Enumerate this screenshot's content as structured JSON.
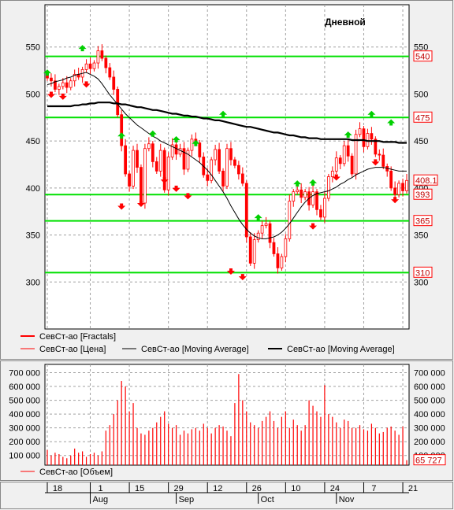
{
  "chart_data": [
    {
      "type": "candlestick",
      "title": "Дневной",
      "ylim": [
        250,
        595
      ],
      "y_ticks": [
        300,
        350,
        400,
        450,
        500,
        550
      ],
      "grid": true,
      "hlines": [
        540,
        475,
        393,
        365,
        310
      ],
      "last_price": 408.1,
      "legend": [
        {
          "name": "СевСт-ао [Fractals]",
          "color": "#ff0000"
        },
        {
          "name": "СевСт-ао [Цена]",
          "color": "#ff0000"
        },
        {
          "name": "СевСт-ао [Moving Average]",
          "color": "#000000"
        },
        {
          "name": "СевСт-ао [Moving Average]",
          "color": "#000000"
        }
      ],
      "close": [
        517,
        514,
        505,
        508,
        512,
        507,
        514,
        521,
        518,
        526,
        532,
        527,
        533,
        546,
        538,
        528,
        518,
        505,
        478,
        445,
        415,
        402,
        440,
        422,
        384,
        442,
        447,
        428,
        418,
        440,
        398,
        433,
        446,
        436,
        442,
        420,
        440,
        452,
        448,
        433,
        414,
        408,
        430,
        441,
        418,
        402,
        442,
        430,
        424,
        415,
        405,
        348,
        320,
        345,
        352,
        360,
        362,
        342,
        330,
        315,
        327,
        346,
        386,
        396,
        398,
        390,
        396,
        382,
        396,
        377,
        369,
        389,
        412,
        418,
        432,
        426,
        445,
        434,
        415,
        457,
        463,
        444,
        458,
        452,
        436,
        435,
        423,
        418,
        400,
        393,
        405,
        397,
        408
      ],
      "ma_short": [
        510,
        511,
        513,
        514,
        515,
        517,
        518,
        520,
        521,
        522,
        523,
        521,
        519,
        516,
        511,
        505,
        499,
        494,
        489,
        484,
        479,
        475,
        471,
        467,
        464,
        461,
        458,
        455,
        453,
        450,
        448,
        446,
        444,
        442,
        440,
        438,
        436,
        433,
        430,
        427,
        423,
        419,
        414,
        408,
        402,
        396,
        389,
        381,
        374,
        367,
        361,
        356,
        352,
        349,
        347,
        346,
        346,
        347,
        348,
        350,
        353,
        357,
        362,
        368,
        374,
        380,
        385,
        389,
        392,
        394,
        395,
        396,
        397,
        399,
        401,
        404,
        406,
        409,
        411,
        414,
        416,
        418,
        420,
        421,
        422,
        422,
        422,
        421,
        420,
        419,
        418,
        418,
        418
      ],
      "ma_long": [
        487,
        487,
        487,
        487,
        487,
        487,
        487,
        488,
        488,
        489,
        489,
        490,
        490,
        491,
        491,
        491,
        491,
        490,
        490,
        489,
        489,
        488,
        487,
        486,
        486,
        485,
        484,
        483,
        483,
        482,
        481,
        480,
        479,
        479,
        478,
        477,
        477,
        476,
        476,
        475,
        474,
        474,
        473,
        472,
        472,
        471,
        470,
        469,
        468,
        467,
        466,
        465,
        465,
        464,
        463,
        462,
        461,
        460,
        459,
        459,
        458,
        457,
        456,
        456,
        455,
        454,
        454,
        453,
        453,
        453,
        452,
        452,
        452,
        452,
        452,
        452,
        452,
        452,
        451,
        451,
        451,
        451,
        450,
        450,
        450,
        450,
        449,
        449,
        449,
        449,
        448,
        448,
        448
      ],
      "fractals_up": [
        [
          0,
          522
        ],
        [
          9,
          548
        ],
        [
          19,
          455
        ],
        [
          27,
          457
        ],
        [
          33,
          451
        ],
        [
          38,
          447
        ],
        [
          45,
          478
        ],
        [
          54,
          368
        ],
        [
          64,
          404
        ],
        [
          68,
          405
        ],
        [
          77,
          456
        ],
        [
          83,
          478
        ],
        [
          88,
          469
        ]
      ],
      "fractals_down": [
        [
          1,
          500
        ],
        [
          4,
          498
        ],
        [
          10,
          511
        ],
        [
          19,
          381
        ],
        [
          24,
          384
        ],
        [
          30,
          409
        ],
        [
          33,
          400
        ],
        [
          36,
          392
        ],
        [
          47,
          312
        ],
        [
          50,
          306
        ],
        [
          68,
          360
        ],
        [
          74,
          412
        ],
        [
          84,
          428
        ],
        [
          89,
          388
        ]
      ]
    },
    {
      "type": "bar",
      "ylim": [
        30000,
        760000
      ],
      "y_ticks": [
        "100 000",
        "200 000",
        "300 000",
        "400 000",
        "500 000",
        "600 000",
        "700 000"
      ],
      "y_tick_values": [
        100000,
        200000,
        300000,
        400000,
        500000,
        600000,
        700000
      ],
      "last_volume": "65 727",
      "legend": [
        {
          "name": "СевСт-ао [Объем]",
          "color": "#ff0000"
        }
      ],
      "values": [
        140000,
        100000,
        120000,
        110000,
        90000,
        80000,
        100000,
        150000,
        120000,
        130000,
        90000,
        110000,
        120000,
        100000,
        130000,
        280000,
        320000,
        400000,
        500000,
        640000,
        600000,
        420000,
        480000,
        300000,
        260000,
        250000,
        280000,
        300000,
        340000,
        380000,
        420000,
        330000,
        300000,
        320000,
        250000,
        280000,
        260000,
        290000,
        300000,
        280000,
        330000,
        300000,
        260000,
        300000,
        320000,
        310000,
        280000,
        240000,
        480000,
        690000,
        500000,
        420000,
        340000,
        320000,
        300000,
        350000,
        380000,
        420000,
        350000,
        300000,
        380000,
        420000,
        300000,
        360000,
        320000,
        280000,
        320000,
        500000,
        460000,
        420000,
        380000,
        610000,
        400000,
        380000,
        340000,
        300000,
        360000,
        350000,
        300000,
        300000,
        320000,
        290000,
        280000,
        330000,
        300000,
        260000,
        270000,
        300000,
        310000,
        280000,
        250000,
        310000,
        66000
      ]
    }
  ],
  "x_axis": {
    "days": [
      {
        "i": 0,
        "label": "18"
      },
      {
        "i": 11,
        "label": "1"
      },
      {
        "i": 21,
        "label": "15"
      },
      {
        "i": 31,
        "label": "29"
      },
      {
        "i": 41,
        "label": "12"
      },
      {
        "i": 51,
        "label": "26"
      },
      {
        "i": 61,
        "label": "10"
      },
      {
        "i": 71,
        "label": "24"
      },
      {
        "i": 81,
        "label": "7"
      },
      {
        "i": 91,
        "label": "21"
      }
    ],
    "months": [
      {
        "i": 11,
        "label": "Aug"
      },
      {
        "i": 33,
        "label": "Sep"
      },
      {
        "i": 54,
        "label": "Oct"
      },
      {
        "i": 74,
        "label": "Nov"
      }
    ]
  }
}
